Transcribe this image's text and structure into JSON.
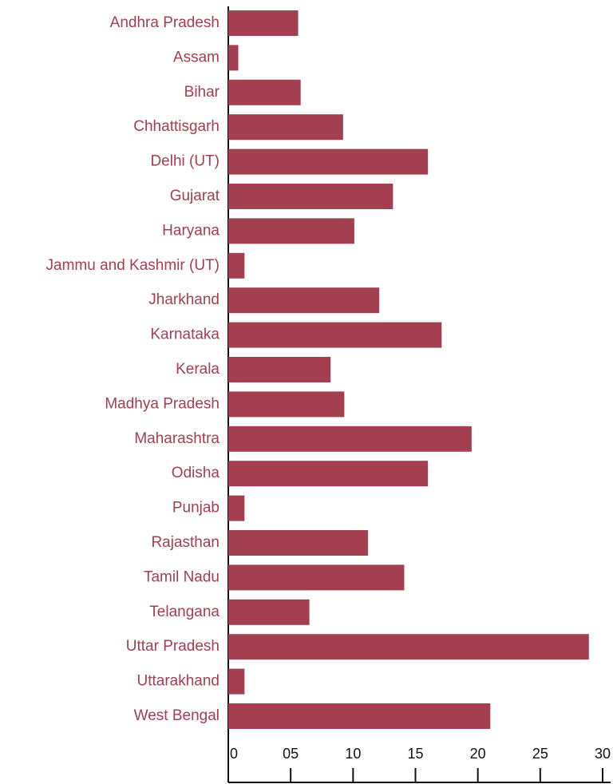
{
  "chart_data": {
    "type": "bar",
    "orientation": "horizontal",
    "color": "#a33f50",
    "categories": [
      "Andhra Pradesh",
      "Assam",
      "Bihar",
      "Chhattisgarh",
      "Delhi (UT)",
      "Gujarat",
      "Haryana",
      "Jammu and Kashmir (UT)",
      "Jharkhand",
      "Karnataka",
      "Kerala",
      "Madhya Pradesh",
      "Maharashtra",
      "Odisha",
      "Punjab",
      "Rajasthan",
      "Tamil Nadu",
      "Telangana",
      "Uttar Pradesh",
      "Uttarakhand",
      "West Bengal"
    ],
    "values": [
      5.6,
      0.8,
      5.8,
      9.2,
      16.0,
      13.2,
      10.1,
      1.3,
      12.1,
      17.1,
      8.2,
      9.3,
      19.5,
      16.0,
      1.3,
      11.2,
      14.1,
      6.5,
      28.9,
      1.3,
      21.0
    ],
    "xlim": [
      0,
      30
    ],
    "xticks": [
      0,
      {
        "value": 5,
        "label": "05"
      },
      10,
      15,
      20,
      25,
      30
    ]
  }
}
